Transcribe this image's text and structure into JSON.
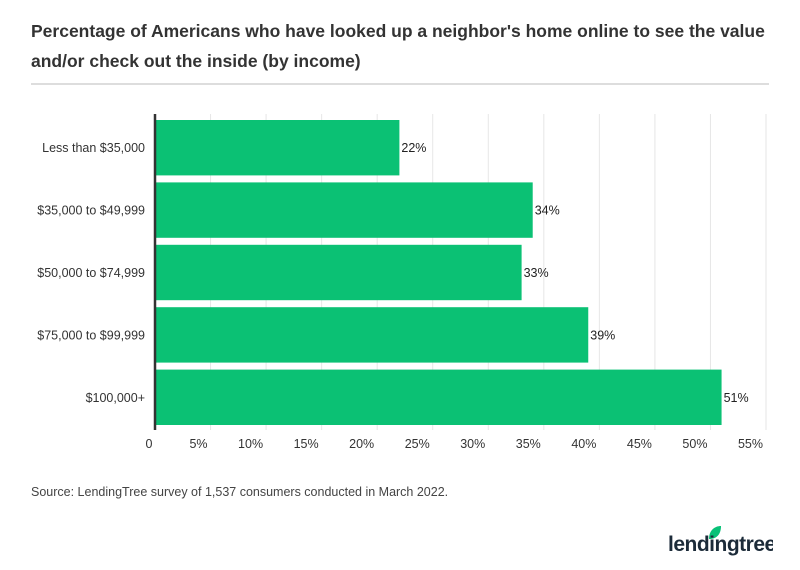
{
  "title": "Percentage of Americans who have looked up a neighbor's home online to see the value and/or check out the inside (by income)",
  "source": "Source: LendingTree survey of 1,537 consumers conducted in March 2022.",
  "logo_text": "lendingtree",
  "colors": {
    "bar": "#0bc174",
    "brand": "#08c177",
    "text": "#333333"
  },
  "chart_data": {
    "type": "bar",
    "orientation": "horizontal",
    "categories": [
      "Less than $35,000",
      "$35,000 to $49,999",
      "$50,000 to $74,999",
      "$75,000 to $99,999",
      "$100,000+"
    ],
    "values": [
      22,
      34,
      33,
      39,
      51
    ],
    "data_labels": [
      "22%",
      "34%",
      "33%",
      "39%",
      "51%"
    ],
    "xlim": [
      0,
      55
    ],
    "xticks": [
      0,
      5,
      10,
      15,
      20,
      25,
      30,
      35,
      40,
      45,
      50,
      55
    ],
    "xtick_labels": [
      "0",
      "5%",
      "10%",
      "15%",
      "20%",
      "25%",
      "30%",
      "35%",
      "40%",
      "45%",
      "50%",
      "55%"
    ],
    "grid": true,
    "legend": "none"
  }
}
